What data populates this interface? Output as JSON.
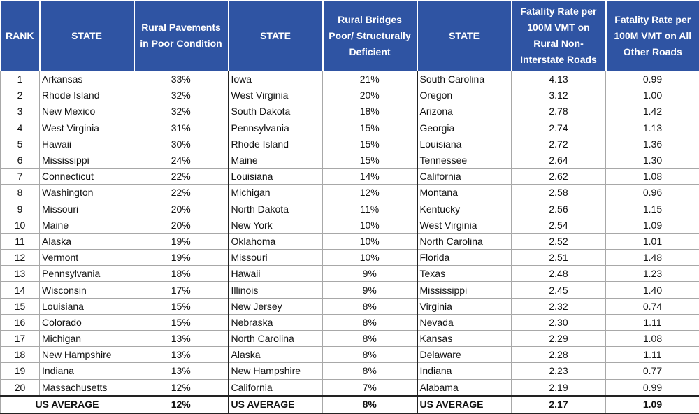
{
  "chart_data": {
    "type": "table",
    "headers": {
      "rank": "RANK",
      "state1": "STATE",
      "pavements": "Rural Pavements in Poor Condition",
      "state2": "STATE",
      "bridges": "Rural Bridges Poor/ Structurally Deficient",
      "state3": "STATE",
      "fatal_rural": "Fatality Rate per 100M VMT on Rural Non-Interstate Roads",
      "fatal_other": "Fatality Rate per 100M VMT on All Other Roads"
    },
    "rows": [
      {
        "rank": "1",
        "pave_state": "Arkansas",
        "pave_value": "33%",
        "bridge_state": "Iowa",
        "bridge_value": "21%",
        "fatal_state": "South Carolina",
        "fatal_rural": "4.13",
        "fatal_other": "0.99"
      },
      {
        "rank": "2",
        "pave_state": "Rhode Island",
        "pave_value": "32%",
        "bridge_state": "West Virginia",
        "bridge_value": "20%",
        "fatal_state": "Oregon",
        "fatal_rural": "3.12",
        "fatal_other": "1.00"
      },
      {
        "rank": "3",
        "pave_state": "New Mexico",
        "pave_value": "32%",
        "bridge_state": "South Dakota",
        "bridge_value": "18%",
        "fatal_state": "Arizona",
        "fatal_rural": "2.78",
        "fatal_other": "1.42"
      },
      {
        "rank": "4",
        "pave_state": "West Virginia",
        "pave_value": "31%",
        "bridge_state": "Pennsylvania",
        "bridge_value": "15%",
        "fatal_state": "Georgia",
        "fatal_rural": "2.74",
        "fatal_other": "1.13"
      },
      {
        "rank": "5",
        "pave_state": "Hawaii",
        "pave_value": "30%",
        "bridge_state": "Rhode Island",
        "bridge_value": "15%",
        "fatal_state": "Louisiana",
        "fatal_rural": "2.72",
        "fatal_other": "1.36"
      },
      {
        "rank": "6",
        "pave_state": "Mississippi",
        "pave_value": "24%",
        "bridge_state": "Maine",
        "bridge_value": "15%",
        "fatal_state": "Tennessee",
        "fatal_rural": "2.64",
        "fatal_other": "1.30"
      },
      {
        "rank": "7",
        "pave_state": "Connecticut",
        "pave_value": "22%",
        "bridge_state": "Louisiana",
        "bridge_value": "14%",
        "fatal_state": "California",
        "fatal_rural": "2.62",
        "fatal_other": "1.08"
      },
      {
        "rank": "8",
        "pave_state": "Washington",
        "pave_value": "22%",
        "bridge_state": "Michigan",
        "bridge_value": "12%",
        "fatal_state": "Montana",
        "fatal_rural": "2.58",
        "fatal_other": "0.96"
      },
      {
        "rank": "9",
        "pave_state": "Missouri",
        "pave_value": "20%",
        "bridge_state": "North Dakota",
        "bridge_value": "11%",
        "fatal_state": "Kentucky",
        "fatal_rural": "2.56",
        "fatal_other": "1.15"
      },
      {
        "rank": "10",
        "pave_state": "Maine",
        "pave_value": "20%",
        "bridge_state": "New York",
        "bridge_value": "10%",
        "fatal_state": "West Virginia",
        "fatal_rural": "2.54",
        "fatal_other": "1.09"
      },
      {
        "rank": "11",
        "pave_state": "Alaska",
        "pave_value": "19%",
        "bridge_state": "Oklahoma",
        "bridge_value": "10%",
        "fatal_state": "North Carolina",
        "fatal_rural": "2.52",
        "fatal_other": "1.01"
      },
      {
        "rank": "12",
        "pave_state": "Vermont",
        "pave_value": "19%",
        "bridge_state": "Missouri",
        "bridge_value": "10%",
        "fatal_state": "Florida",
        "fatal_rural": "2.51",
        "fatal_other": "1.48"
      },
      {
        "rank": "13",
        "pave_state": "Pennsylvania",
        "pave_value": "18%",
        "bridge_state": "Hawaii",
        "bridge_value": "9%",
        "fatal_state": "Texas",
        "fatal_rural": "2.48",
        "fatal_other": "1.23"
      },
      {
        "rank": "14",
        "pave_state": "Wisconsin",
        "pave_value": "17%",
        "bridge_state": "Illinois",
        "bridge_value": "9%",
        "fatal_state": "Mississippi",
        "fatal_rural": "2.45",
        "fatal_other": "1.40"
      },
      {
        "rank": "15",
        "pave_state": "Louisiana",
        "pave_value": "15%",
        "bridge_state": "New Jersey",
        "bridge_value": "8%",
        "fatal_state": "Virginia",
        "fatal_rural": "2.32",
        "fatal_other": "0.74"
      },
      {
        "rank": "16",
        "pave_state": "Colorado",
        "pave_value": "15%",
        "bridge_state": "Nebraska",
        "bridge_value": "8%",
        "fatal_state": "Nevada",
        "fatal_rural": "2.30",
        "fatal_other": "1.11"
      },
      {
        "rank": "17",
        "pave_state": "Michigan",
        "pave_value": "13%",
        "bridge_state": "North Carolina",
        "bridge_value": "8%",
        "fatal_state": "Kansas",
        "fatal_rural": "2.29",
        "fatal_other": "1.08"
      },
      {
        "rank": "18",
        "pave_state": "New Hampshire",
        "pave_value": "13%",
        "bridge_state": "Alaska",
        "bridge_value": "8%",
        "fatal_state": "Delaware",
        "fatal_rural": "2.28",
        "fatal_other": "1.11"
      },
      {
        "rank": "19",
        "pave_state": "Indiana",
        "pave_value": "13%",
        "bridge_state": "New Hampshire",
        "bridge_value": "8%",
        "fatal_state": "Indiana",
        "fatal_rural": "2.23",
        "fatal_other": "0.77"
      },
      {
        "rank": "20",
        "pave_state": "Massachusetts",
        "pave_value": "12%",
        "bridge_state": "California",
        "bridge_value": "7%",
        "fatal_state": "Alabama",
        "fatal_rural": "2.19",
        "fatal_other": "0.99"
      }
    ],
    "average": {
      "label": "US AVERAGE",
      "pave_value": "12%",
      "bridge_value": "8%",
      "fatal_rural": "2.17",
      "fatal_other": "1.09"
    },
    "colors": {
      "header_bg": "#2f54a3",
      "header_text": "#ffffff"
    }
  }
}
